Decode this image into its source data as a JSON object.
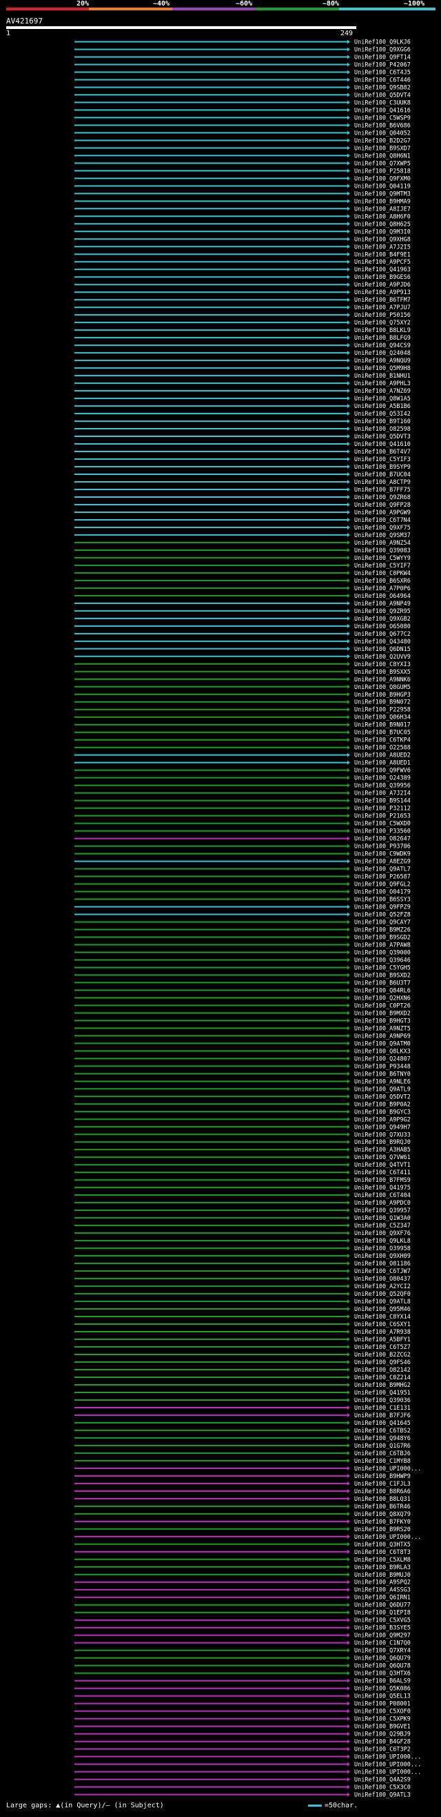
{
  "identity_scale": {
    "ticks": [
      "20%",
      "~40%",
      "~60%",
      "~80%",
      "~100%"
    ],
    "colors": [
      "#e02020",
      "#f08020",
      "#a040c0",
      "#20a020",
      "#33c8d8"
    ]
  },
  "query": {
    "id": "AV421697",
    "start": "1",
    "end": "249"
  },
  "legend": {
    "gaps_text": "Large gaps: ▲(in Query)/– (in Subject)",
    "scale_text": "=50char."
  },
  "chart_data": {
    "type": "alignment-overview",
    "query_length": 249,
    "color_scale": {
      "cyan": "#33c8d8",
      "green": "#20a020",
      "magenta": "#c030c0"
    },
    "hits": [
      {
        "label": "UniRef100_Q9LKJ6",
        "color": "cyan"
      },
      {
        "label": "UniRef100_Q9XGG6",
        "color": "cyan"
      },
      {
        "label": "UniRef100_Q9FT14",
        "color": "cyan"
      },
      {
        "label": "UniRef100_P42067",
        "color": "cyan"
      },
      {
        "label": "UniRef100_C6T4J5",
        "color": "cyan"
      },
      {
        "label": "UniRef100_C6T446",
        "color": "cyan"
      },
      {
        "label": "UniRef100_Q9SB82",
        "color": "cyan"
      },
      {
        "label": "UniRef100_Q5DVT4",
        "color": "cyan"
      },
      {
        "label": "UniRef100_C3UUK8",
        "color": "cyan"
      },
      {
        "label": "UniRef100_Q41616",
        "color": "cyan"
      },
      {
        "label": "UniRef100_C5WSP9",
        "color": "cyan"
      },
      {
        "label": "UniRef100_B6V686",
        "color": "cyan"
      },
      {
        "label": "UniRef100_Q04052",
        "color": "cyan"
      },
      {
        "label": "UniRef100_B2D2G7",
        "color": "cyan"
      },
      {
        "label": "UniRef100_B9SXD7",
        "color": "cyan"
      },
      {
        "label": "UniRef100_Q8H6N1",
        "color": "cyan"
      },
      {
        "label": "UniRef100_Q7XWP5",
        "color": "cyan"
      },
      {
        "label": "UniRef100_P25818",
        "color": "cyan"
      },
      {
        "label": "UniRef100_Q9FXM0",
        "color": "cyan"
      },
      {
        "label": "UniRef100_Q04119",
        "color": "cyan"
      },
      {
        "label": "UniRef100_Q9MTM3",
        "color": "cyan"
      },
      {
        "label": "UniRef100_B9HMA9",
        "color": "cyan"
      },
      {
        "label": "UniRef100_A8IJE7",
        "color": "cyan"
      },
      {
        "label": "UniRef100_A8H6F0",
        "color": "cyan"
      },
      {
        "label": "UniRef100_Q8H625",
        "color": "cyan"
      },
      {
        "label": "UniRef100_Q9M3I0",
        "color": "cyan"
      },
      {
        "label": "UniRef100_Q9XHG8",
        "color": "cyan"
      },
      {
        "label": "UniRef100_A7J2I5",
        "color": "cyan"
      },
      {
        "label": "UniRef100_B4F9E1",
        "color": "cyan"
      },
      {
        "label": "UniRef100_A9PCF5",
        "color": "cyan"
      },
      {
        "label": "UniRef100_Q41963",
        "color": "cyan"
      },
      {
        "label": "UniRef100_B9GES6",
        "color": "cyan"
      },
      {
        "label": "UniRef100_A9PJD6",
        "color": "cyan"
      },
      {
        "label": "UniRef100_A9P913",
        "color": "cyan"
      },
      {
        "label": "UniRef100_B6TFM7",
        "color": "cyan"
      },
      {
        "label": "UniRef100_A7PJU7",
        "color": "cyan"
      },
      {
        "label": "UniRef100_P50156",
        "color": "cyan"
      },
      {
        "label": "UniRef100_Q75XY2",
        "color": "cyan"
      },
      {
        "label": "UniRef100_B8LKL9",
        "color": "cyan"
      },
      {
        "label": "UniRef100_B8LFG9",
        "color": "cyan"
      },
      {
        "label": "UniRef100_Q94CS9",
        "color": "cyan"
      },
      {
        "label": "UniRef100_Q24048",
        "color": "cyan"
      },
      {
        "label": "UniRef100_A9NQU9",
        "color": "cyan"
      },
      {
        "label": "UniRef100_Q5M9H8",
        "color": "cyan"
      },
      {
        "label": "UniRef100_B1NHU1",
        "color": "cyan"
      },
      {
        "label": "UniRef100_A9PHL3",
        "color": "cyan"
      },
      {
        "label": "UniRef100_A7NZ69",
        "color": "cyan"
      },
      {
        "label": "UniRef100_Q8W1A5",
        "color": "cyan"
      },
      {
        "label": "UniRef100_A5B1B6",
        "color": "cyan"
      },
      {
        "label": "UniRef100_Q53I42",
        "color": "cyan"
      },
      {
        "label": "UniRef100_B9T160",
        "color": "cyan"
      },
      {
        "label": "UniRef100_O82598",
        "color": "cyan"
      },
      {
        "label": "UniRef100_Q5DVT3",
        "color": "cyan"
      },
      {
        "label": "UniRef100_Q41610",
        "color": "cyan"
      },
      {
        "label": "UniRef100_B6T4V7",
        "color": "cyan"
      },
      {
        "label": "UniRef100_C5YIF3",
        "color": "cyan"
      },
      {
        "label": "UniRef100_B9SYP9",
        "color": "cyan"
      },
      {
        "label": "UniRef100_B7UC04",
        "color": "cyan"
      },
      {
        "label": "UniRef100_A8CTP9",
        "color": "cyan"
      },
      {
        "label": "UniRef100_B7FF75",
        "color": "cyan"
      },
      {
        "label": "UniRef100_Q9ZR68",
        "color": "cyan"
      },
      {
        "label": "UniRef100_Q9FP28",
        "color": "cyan"
      },
      {
        "label": "UniRef100_A9PGW9",
        "color": "cyan"
      },
      {
        "label": "UniRef100_C6T7N4",
        "color": "cyan"
      },
      {
        "label": "UniRef100_Q9XF75",
        "color": "cyan"
      },
      {
        "label": "UniRef100_Q9SM37",
        "color": "cyan"
      },
      {
        "label": "UniRef100_A9NZ54",
        "color": "green"
      },
      {
        "label": "UniRef100_Q39083",
        "color": "green"
      },
      {
        "label": "UniRef100_C5WYY9",
        "color": "green"
      },
      {
        "label": "UniRef100_C5YIF7",
        "color": "green"
      },
      {
        "label": "UniRef100_C0PKW4",
        "color": "green"
      },
      {
        "label": "UniRef100_B6SXR6",
        "color": "green"
      },
      {
        "label": "UniRef100_A7P0P6",
        "color": "green"
      },
      {
        "label": "UniRef100_O64964",
        "color": "green"
      },
      {
        "label": "UniRef100_A9NP49",
        "color": "cyan"
      },
      {
        "label": "UniRef100_Q9ZR95",
        "color": "cyan"
      },
      {
        "label": "UniRef100_Q9XGB2",
        "color": "cyan"
      },
      {
        "label": "UniRef100_O65080",
        "color": "cyan"
      },
      {
        "label": "UniRef100_Q677C2",
        "color": "cyan"
      },
      {
        "label": "UniRef100_Q43480",
        "color": "cyan"
      },
      {
        "label": "UniRef100_Q6DN15",
        "color": "cyan"
      },
      {
        "label": "UniRef100_Q2UVV9",
        "color": "cyan"
      },
      {
        "label": "UniRef100_C8YXI3",
        "color": "green"
      },
      {
        "label": "UniRef100_B9SXX5",
        "color": "green"
      },
      {
        "label": "UniRef100_A9NNK6",
        "color": "green"
      },
      {
        "label": "UniRef100_Q8GUM5",
        "color": "green"
      },
      {
        "label": "UniRef100_B9HGP3",
        "color": "green"
      },
      {
        "label": "UniRef100_B9N072",
        "color": "green"
      },
      {
        "label": "UniRef100_P22958",
        "color": "green"
      },
      {
        "label": "UniRef100_Q06H34",
        "color": "green"
      },
      {
        "label": "UniRef100_B9N017",
        "color": "green"
      },
      {
        "label": "UniRef100_B7UC05",
        "color": "green"
      },
      {
        "label": "UniRef100_C6TKP4",
        "color": "green"
      },
      {
        "label": "UniRef100_O22588",
        "color": "green"
      },
      {
        "label": "UniRef100_A8UED2",
        "color": "cyan"
      },
      {
        "label": "UniRef100_A8UED1",
        "color": "cyan"
      },
      {
        "label": "UniRef100_Q9FWV6",
        "color": "green"
      },
      {
        "label": "UniRef100_O24389",
        "color": "green"
      },
      {
        "label": "UniRef100_Q39956",
        "color": "green"
      },
      {
        "label": "UniRef100_A7J2I4",
        "color": "green"
      },
      {
        "label": "UniRef100_B9S144",
        "color": "green"
      },
      {
        "label": "UniRef100_P32112",
        "color": "green"
      },
      {
        "label": "UniRef100_P21653",
        "color": "green"
      },
      {
        "label": "UniRef100_C5WXD0",
        "color": "green"
      },
      {
        "label": "UniRef100_P33560",
        "color": "green"
      },
      {
        "label": "UniRef100_O82647",
        "color": "magenta"
      },
      {
        "label": "UniRef100_P93706",
        "color": "green"
      },
      {
        "label": "UniRef100_C9WDK9",
        "color": "green"
      },
      {
        "label": "UniRef100_A8EZG9",
        "color": "cyan"
      },
      {
        "label": "UniRef100_Q9ATL7",
        "color": "green"
      },
      {
        "label": "UniRef100_P26587",
        "color": "green"
      },
      {
        "label": "UniRef100_Q9FGL2",
        "color": "green"
      },
      {
        "label": "UniRef100_O04179",
        "color": "green"
      },
      {
        "label": "UniRef100_B6SSY3",
        "color": "green"
      },
      {
        "label": "UniRef100_Q9FPZ9",
        "color": "cyan"
      },
      {
        "label": "UniRef100_Q52FZ8",
        "color": "cyan"
      },
      {
        "label": "UniRef100_Q9CAY7",
        "color": "green"
      },
      {
        "label": "UniRef100_B9MZ26",
        "color": "green"
      },
      {
        "label": "UniRef100_B9SGD2",
        "color": "green"
      },
      {
        "label": "UniRef100_A7PAW8",
        "color": "green"
      },
      {
        "label": "UniRef100_Q39000",
        "color": "green"
      },
      {
        "label": "UniRef100_Q39646",
        "color": "green"
      },
      {
        "label": "UniRef100_C5YGH5",
        "color": "green"
      },
      {
        "label": "UniRef100_B9SXD2",
        "color": "green"
      },
      {
        "label": "UniRef100_B6U3T7",
        "color": "green"
      },
      {
        "label": "UniRef100_Q84RL6",
        "color": "green"
      },
      {
        "label": "UniRef100_Q2HXN6",
        "color": "green"
      },
      {
        "label": "UniRef100_C0PT26",
        "color": "green"
      },
      {
        "label": "UniRef100_B9MXD2",
        "color": "green"
      },
      {
        "label": "UniRef100_B9HGT3",
        "color": "green"
      },
      {
        "label": "UniRef100_A9NZT5",
        "color": "green"
      },
      {
        "label": "UniRef100_A9NP69",
        "color": "green"
      },
      {
        "label": "UniRef100_Q9ATM0",
        "color": "green"
      },
      {
        "label": "UniRef100_Q8LKX3",
        "color": "green"
      },
      {
        "label": "UniRef100_Q24807",
        "color": "green"
      },
      {
        "label": "UniRef100_P93448",
        "color": "green"
      },
      {
        "label": "UniRef100_B6TNY0",
        "color": "green"
      },
      {
        "label": "UniRef100_A9NLE6",
        "color": "green"
      },
      {
        "label": "UniRef100_Q9ATL9",
        "color": "green"
      },
      {
        "label": "UniRef100_Q5DVT2",
        "color": "green"
      },
      {
        "label": "UniRef100_B9P0A2",
        "color": "green"
      },
      {
        "label": "UniRef100_B9GYC3",
        "color": "green"
      },
      {
        "label": "UniRef100_A9P9G2",
        "color": "green"
      },
      {
        "label": "UniRef100_Q949H7",
        "color": "green"
      },
      {
        "label": "UniRef100_Q7XU33",
        "color": "green"
      },
      {
        "label": "UniRef100_B9RQJ0",
        "color": "green"
      },
      {
        "label": "UniRef100_A3HAB5",
        "color": "green"
      },
      {
        "label": "UniRef100_Q7VW61",
        "color": "green"
      },
      {
        "label": "UniRef100_Q4TVT1",
        "color": "green"
      },
      {
        "label": "UniRef100_C6T411",
        "color": "green"
      },
      {
        "label": "UniRef100_B7FMS9",
        "color": "green"
      },
      {
        "label": "UniRef100_Q41975",
        "color": "green"
      },
      {
        "label": "UniRef100_C6T404",
        "color": "green"
      },
      {
        "label": "UniRef100_A9PDC0",
        "color": "green"
      },
      {
        "label": "UniRef100_Q39957",
        "color": "green"
      },
      {
        "label": "UniRef100_Q1W3A0",
        "color": "green"
      },
      {
        "label": "UniRef100_C5Z347",
        "color": "green"
      },
      {
        "label": "UniRef100_Q9XF76",
        "color": "green"
      },
      {
        "label": "UniRef100_Q9LKL8",
        "color": "green"
      },
      {
        "label": "UniRef100_O39958",
        "color": "green"
      },
      {
        "label": "UniRef100_Q9XH09",
        "color": "green"
      },
      {
        "label": "UniRef100_O81186",
        "color": "green"
      },
      {
        "label": "UniRef100_C6TJW7",
        "color": "green"
      },
      {
        "label": "UniRef100_O80437",
        "color": "green"
      },
      {
        "label": "UniRef100_A2YCI2",
        "color": "green"
      },
      {
        "label": "UniRef100_Q52QF0",
        "color": "green"
      },
      {
        "label": "UniRef100_Q9ATL8",
        "color": "green"
      },
      {
        "label": "UniRef100_Q95M46",
        "color": "green"
      },
      {
        "label": "UniRef100_C8YX14",
        "color": "green"
      },
      {
        "label": "UniRef100_C6SXY1",
        "color": "green"
      },
      {
        "label": "UniRef100_A7R938",
        "color": "green"
      },
      {
        "label": "UniRef100_A5BFY1",
        "color": "green"
      },
      {
        "label": "UniRef100_C6T5Z7",
        "color": "green"
      },
      {
        "label": "UniRef100_B2ZCG2",
        "color": "green"
      },
      {
        "label": "UniRef100_Q9FS46",
        "color": "green"
      },
      {
        "label": "UniRef100_O82142",
        "color": "green"
      },
      {
        "label": "UniRef100_C0Z214",
        "color": "green"
      },
      {
        "label": "UniRef100_B9MHG2",
        "color": "green"
      },
      {
        "label": "UniRef100_Q41951",
        "color": "green"
      },
      {
        "label": "UniRef100_Q39036",
        "color": "green"
      },
      {
        "label": "UniRef100_C1E131",
        "color": "magenta"
      },
      {
        "label": "UniRef100_B7FJF6",
        "color": "magenta"
      },
      {
        "label": "UniRef100_Q41645",
        "color": "green"
      },
      {
        "label": "UniRef100_C6TBS2",
        "color": "green"
      },
      {
        "label": "UniRef100_Q948Y6",
        "color": "green"
      },
      {
        "label": "UniRef100_Q1G7R6",
        "color": "green"
      },
      {
        "label": "UniRef100_C6TBJ6",
        "color": "green"
      },
      {
        "label": "UniRef100_C1MYB8",
        "color": "green"
      },
      {
        "label": "UniRef100_UPI000...",
        "color": "magenta"
      },
      {
        "label": "UniRef100_B9HWP9",
        "color": "magenta"
      },
      {
        "label": "UniRef100_C1FJL3",
        "color": "magenta"
      },
      {
        "label": "UniRef100_B8R6A6",
        "color": "magenta"
      },
      {
        "label": "UniRef100_B8LQ31",
        "color": "magenta"
      },
      {
        "label": "UniRef100_B6TR46",
        "color": "green"
      },
      {
        "label": "UniRef100_Q8XQ79",
        "color": "green"
      },
      {
        "label": "UniRef100_B7FKY0",
        "color": "magenta"
      },
      {
        "label": "UniRef100_B9RS20",
        "color": "green"
      },
      {
        "label": "UniRef100_UPI000...",
        "color": "magenta"
      },
      {
        "label": "UniRef100_Q3HTX5",
        "color": "green"
      },
      {
        "label": "UniRef100_C6T8T3",
        "color": "magenta"
      },
      {
        "label": "UniRef100_C5XLM8",
        "color": "green"
      },
      {
        "label": "UniRef100_B9RLA3",
        "color": "green"
      },
      {
        "label": "UniRef100_B9MUJ0",
        "color": "green"
      },
      {
        "label": "UniRef100_A9SPQ2",
        "color": "magenta"
      },
      {
        "label": "UniRef100_A4SSG3",
        "color": "magenta"
      },
      {
        "label": "UniRef100_Q6IRN1",
        "color": "magenta"
      },
      {
        "label": "UniRef100_Q6DU77",
        "color": "green"
      },
      {
        "label": "UniRef100_Q1EPI8",
        "color": "green"
      },
      {
        "label": "UniRef100_C5XVG5",
        "color": "magenta"
      },
      {
        "label": "UniRef100_B3SYE5",
        "color": "magenta"
      },
      {
        "label": "UniRef100_Q9M297",
        "color": "magenta"
      },
      {
        "label": "UniRef100_C1N7Q0",
        "color": "magenta"
      },
      {
        "label": "UniRef100_Q7XRY4",
        "color": "green"
      },
      {
        "label": "UniRef100_Q6QU79",
        "color": "green"
      },
      {
        "label": "UniRef100_Q6QU78",
        "color": "green"
      },
      {
        "label": "UniRef100_Q3HTX6",
        "color": "green"
      },
      {
        "label": "UniRef100_B6ALS9",
        "color": "magenta"
      },
      {
        "label": "UniRef100_Q5K086",
        "color": "magenta"
      },
      {
        "label": "UniRef100_Q5EL13",
        "color": "magenta"
      },
      {
        "label": "UniRef100_P08001",
        "color": "magenta"
      },
      {
        "label": "UniRef100_C5XOF0",
        "color": "magenta"
      },
      {
        "label": "UniRef100_C5XPK9",
        "color": "magenta"
      },
      {
        "label": "UniRef100_B9GVE1",
        "color": "magenta"
      },
      {
        "label": "UniRef100_Q29BJ9",
        "color": "magenta"
      },
      {
        "label": "UniRef100_B4GF28",
        "color": "magenta"
      },
      {
        "label": "UniRef100_C6T3P2",
        "color": "magenta"
      },
      {
        "label": "UniRef100_UPI000...",
        "color": "magenta"
      },
      {
        "label": "UniRef100_UPI000...",
        "color": "magenta"
      },
      {
        "label": "UniRef100_UPI000...",
        "color": "magenta"
      },
      {
        "label": "UniRef100_Q4A2S9",
        "color": "magenta"
      },
      {
        "label": "UniRef100_C5X3C0",
        "color": "magenta"
      },
      {
        "label": "UniRef100_Q9ATL3",
        "color": "magenta"
      }
    ]
  }
}
